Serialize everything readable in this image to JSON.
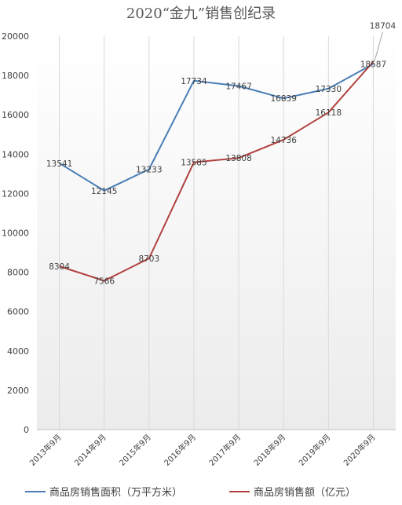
{
  "chart_data": {
    "type": "line",
    "title": "2020“金九”销售创纪录",
    "categories": [
      "2013年9月",
      "2014年9月",
      "2015年9月",
      "2016年9月",
      "2017年9月",
      "2018年9月",
      "2019年9月",
      "2020年9月"
    ],
    "series": [
      {
        "name": "商品房销售面积（万平方米）",
        "color": "#4a7eb5",
        "values": [
          13541,
          12145,
          13233,
          17734,
          17467,
          16839,
          17330,
          18587
        ]
      },
      {
        "name": "商品房销售额（亿元）",
        "color": "#b0413e",
        "values": [
          8304,
          7566,
          8703,
          13585,
          13808,
          14736,
          16118,
          18704
        ]
      }
    ],
    "ylim": [
      0,
      20000
    ],
    "yticks": [
      0,
      2000,
      4000,
      6000,
      8000,
      10000,
      12000,
      14000,
      16000,
      18000,
      20000
    ],
    "xlabel": "",
    "ylabel": "",
    "grid": "vertical",
    "legend": "bottom"
  }
}
